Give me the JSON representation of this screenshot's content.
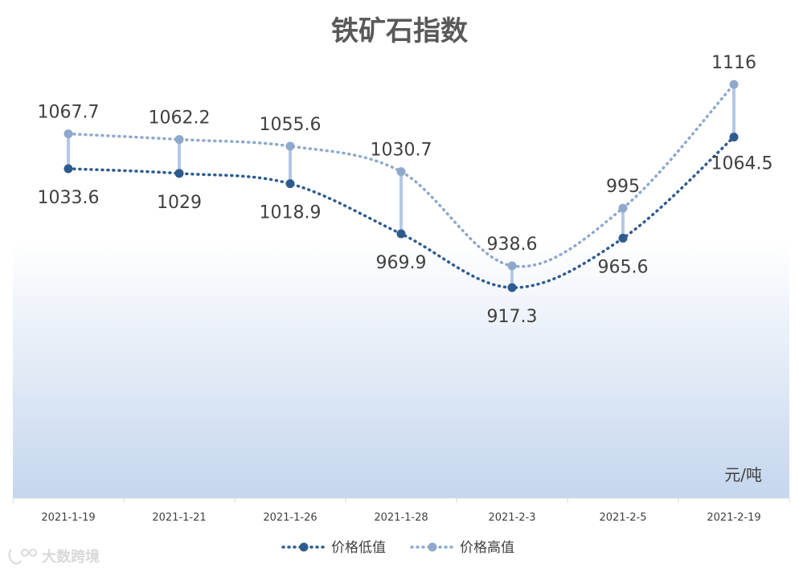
{
  "chart_data": {
    "type": "line",
    "title": "铁矿石指数",
    "unit": "元/吨",
    "categories": [
      "2021-1-19",
      "2021-1-21",
      "2021-1-26",
      "2021-1-28",
      "2021-2-3",
      "2021-2-5",
      "2021-2-19"
    ],
    "series": [
      {
        "name": "价格低值",
        "values": [
          1033.6,
          1029,
          1018.9,
          969.9,
          917.3,
          965.6,
          1064.5
        ],
        "color": "#2e5b8f"
      },
      {
        "name": "价格高值",
        "values": [
          1067.7,
          1062.2,
          1055.6,
          1030.7,
          938.6,
          995,
          1116
        ],
        "color": "#8fa9cc"
      }
    ],
    "high_low_lines": true,
    "grid": false,
    "legend": "bottom",
    "colors": {
      "drop_line": "#b4c7e7",
      "background_gradient_bottom": "#c5d6ee"
    }
  },
  "watermark": {
    "text": "大数跨境"
  }
}
